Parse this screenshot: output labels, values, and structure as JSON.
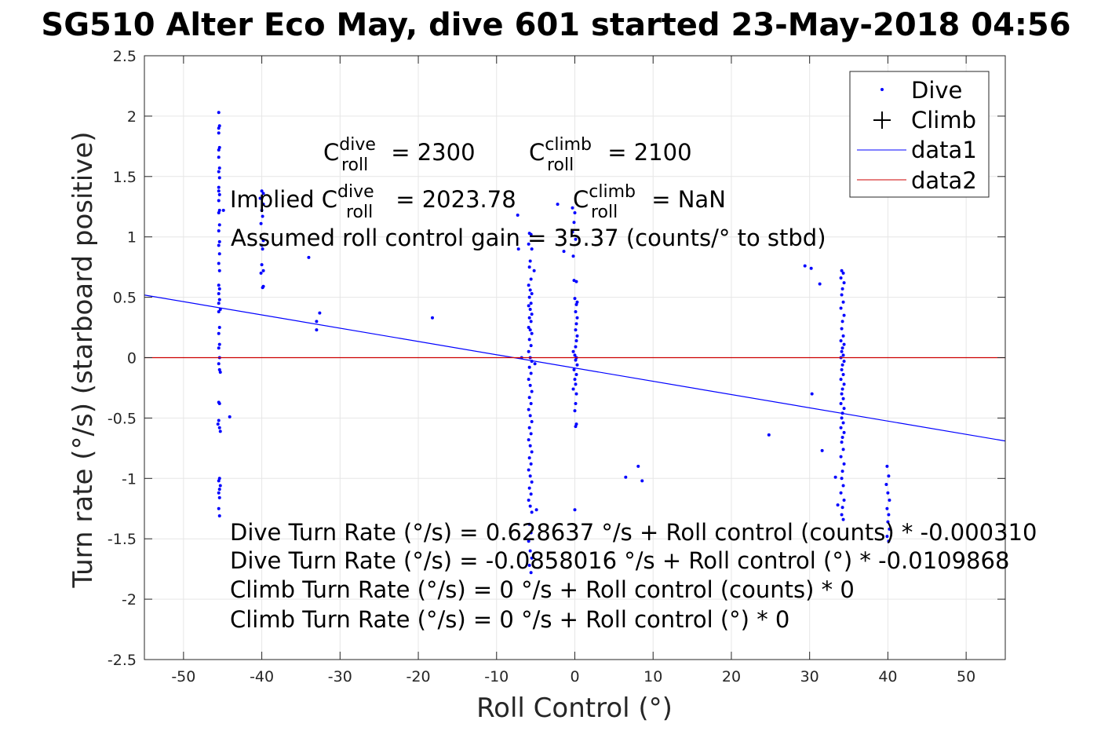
{
  "figure": {
    "title": "SG510 Alter Eco May, dive 601 started 23-May-2018 04:56"
  },
  "chart_data": {
    "type": "scatter",
    "title": "SG510 Alter Eco May, dive 601 started 23-May-2018 04:56",
    "xlabel": "Roll Control (°)",
    "ylabel": "Turn rate (°/s) (starboard positive)",
    "xlim": [
      -55,
      55
    ],
    "ylim": [
      -2.5,
      2.5
    ],
    "xticks": [
      -50,
      -40,
      -30,
      -20,
      -10,
      0,
      10,
      20,
      30,
      40,
      50
    ],
    "xtick_labels": [
      "-50",
      "-40",
      "-30",
      "-20",
      "-10",
      "0",
      "10",
      "20",
      "30",
      "40",
      "50"
    ],
    "yticks": [
      -2.5,
      -2,
      -1.5,
      -1,
      -0.5,
      0,
      0.5,
      1,
      1.5,
      2,
      2.5
    ],
    "ytick_labels": [
      "-2.5",
      "-2",
      "-1.5",
      "-1",
      "-0.5",
      "0",
      "0.5",
      "1",
      "1.5",
      "2",
      "2.5"
    ],
    "grid": true,
    "legend_position": "top-right",
    "legend": [
      "Dive",
      "Climb",
      "data1",
      "data2"
    ],
    "series": [
      {
        "name": "Dive",
        "kind": "scatter",
        "marker": "dot",
        "color": "#0000ff",
        "points": [
          [
            -45.5,
            2.03
          ],
          [
            -45.4,
            1.92
          ],
          [
            -45.5,
            1.9
          ],
          [
            -45.5,
            1.86
          ],
          [
            -45.4,
            1.74
          ],
          [
            -45.5,
            1.72
          ],
          [
            -45.5,
            1.66
          ],
          [
            -45.4,
            1.57
          ],
          [
            -45.5,
            1.54
          ],
          [
            -45.4,
            1.49
          ],
          [
            -45.5,
            1.41
          ],
          [
            -45.5,
            1.38
          ],
          [
            -45.4,
            1.35
          ],
          [
            -45.5,
            1.3
          ],
          [
            -45.4,
            1.22
          ],
          [
            -45.5,
            1.2
          ],
          [
            -45.4,
            1.1
          ],
          [
            -45.5,
            1.05
          ],
          [
            -45.4,
            0.96
          ],
          [
            -45.5,
            0.93
          ],
          [
            -45.4,
            0.86
          ],
          [
            -45.5,
            0.78
          ],
          [
            -45.4,
            0.72
          ],
          [
            -45.5,
            0.6
          ],
          [
            -45.4,
            0.57
          ],
          [
            -45.5,
            0.53
          ],
          [
            -45.4,
            0.48
          ],
          [
            -45.5,
            0.45
          ],
          [
            -45.3,
            0.4
          ],
          [
            -45.5,
            0.38
          ],
          [
            -45.4,
            0.25
          ],
          [
            -45.5,
            0.2
          ],
          [
            -45.4,
            0.11
          ],
          [
            -45.5,
            0.08
          ],
          [
            -45.4,
            0.0
          ],
          [
            -45.5,
            -0.05
          ],
          [
            -45.4,
            -0.1
          ],
          [
            -45.3,
            -0.12
          ],
          [
            -45.5,
            -0.37
          ],
          [
            -45.4,
            -0.38
          ],
          [
            -45.5,
            -0.52
          ],
          [
            -45.6,
            -0.55
          ],
          [
            -45.4,
            -0.58
          ],
          [
            -45.3,
            -0.61
          ],
          [
            -45.4,
            -1.0
          ],
          [
            -45.5,
            -1.02
          ],
          [
            -45.3,
            -1.06
          ],
          [
            -45.4,
            -1.09
          ],
          [
            -45.5,
            -1.12
          ],
          [
            -45.4,
            -1.16
          ],
          [
            -45.5,
            -1.25
          ],
          [
            -45.4,
            -1.31
          ],
          [
            -44.9,
            1.22
          ],
          [
            -44.1,
            -0.49
          ],
          [
            -40.0,
            1.38
          ],
          [
            -39.8,
            1.36
          ],
          [
            -40.2,
            1.32
          ],
          [
            -39.8,
            1.27
          ],
          [
            -40.0,
            1.22
          ],
          [
            -39.9,
            1.17
          ],
          [
            -40.1,
            1.11
          ],
          [
            -39.8,
            0.97
          ],
          [
            -40.0,
            0.93
          ],
          [
            -39.9,
            0.9
          ],
          [
            -40.0,
            0.77
          ],
          [
            -39.8,
            0.72
          ],
          [
            -40.1,
            0.7
          ],
          [
            -39.8,
            0.59
          ],
          [
            -39.9,
            0.58
          ],
          [
            -34.0,
            0.83
          ],
          [
            -32.6,
            0.37
          ],
          [
            -33.0,
            0.3
          ],
          [
            -33.0,
            0.23
          ],
          [
            -18.2,
            0.33
          ],
          [
            -7.3,
            1.18
          ],
          [
            -7.2,
            0.9
          ],
          [
            -6.8,
            0.0
          ],
          [
            -5.8,
            1.03
          ],
          [
            -5.6,
            1.02
          ],
          [
            -5.9,
            0.94
          ],
          [
            -5.5,
            0.9
          ],
          [
            -5.7,
            0.8
          ],
          [
            -5.8,
            0.75
          ],
          [
            -5.6,
            0.65
          ],
          [
            -5.9,
            0.6
          ],
          [
            -5.7,
            0.56
          ],
          [
            -5.5,
            0.53
          ],
          [
            -5.8,
            0.5
          ],
          [
            -5.6,
            0.45
          ],
          [
            -5.9,
            0.43
          ],
          [
            -5.7,
            0.4
          ],
          [
            -5.5,
            0.36
          ],
          [
            -5.8,
            0.33
          ],
          [
            -5.6,
            0.3
          ],
          [
            -5.9,
            0.25
          ],
          [
            -5.7,
            0.23
          ],
          [
            -5.5,
            0.2
          ],
          [
            -5.8,
            0.15
          ],
          [
            -5.6,
            0.1
          ],
          [
            -5.9,
            0.05
          ],
          [
            -5.7,
            0.0
          ],
          [
            -5.5,
            -0.03
          ],
          [
            -5.8,
            -0.08
          ],
          [
            -5.6,
            -0.13
          ],
          [
            -5.9,
            -0.18
          ],
          [
            -5.7,
            -0.23
          ],
          [
            -5.5,
            -0.28
          ],
          [
            -5.8,
            -0.33
          ],
          [
            -5.6,
            -0.38
          ],
          [
            -5.9,
            -0.43
          ],
          [
            -5.7,
            -0.48
          ],
          [
            -5.5,
            -0.53
          ],
          [
            -5.8,
            -0.58
          ],
          [
            -5.6,
            -0.63
          ],
          [
            -5.9,
            -0.68
          ],
          [
            -5.7,
            -0.73
          ],
          [
            -5.5,
            -0.78
          ],
          [
            -5.8,
            -0.83
          ],
          [
            -5.6,
            -0.88
          ],
          [
            -5.9,
            -0.93
          ],
          [
            -5.7,
            -0.98
          ],
          [
            -5.5,
            -1.03
          ],
          [
            -5.8,
            -1.08
          ],
          [
            -5.6,
            -1.13
          ],
          [
            -5.9,
            -1.18
          ],
          [
            -5.7,
            -1.23
          ],
          [
            -5.5,
            -1.28
          ],
          [
            -5.8,
            -1.38
          ],
          [
            -5.6,
            -1.45
          ],
          [
            -5.9,
            -1.52
          ],
          [
            -5.7,
            -1.6
          ],
          [
            -5.5,
            -1.66
          ],
          [
            -5.8,
            -1.72
          ],
          [
            -5.6,
            -1.78
          ],
          [
            -5.2,
            0.72
          ],
          [
            -5.1,
            -0.05
          ],
          [
            -4.9,
            -1.26
          ],
          [
            -2.2,
            1.27
          ],
          [
            -1.4,
            0.88
          ],
          [
            -0.3,
            1.24
          ],
          [
            0.0,
            1.2
          ],
          [
            -0.1,
            1.12
          ],
          [
            -0.3,
            1.04
          ],
          [
            0.1,
            0.98
          ],
          [
            -0.2,
            0.84
          ],
          [
            -0.1,
            0.64
          ],
          [
            0.2,
            0.63
          ],
          [
            0.0,
            0.49
          ],
          [
            0.3,
            0.46
          ],
          [
            0.2,
            0.44
          ],
          [
            0.1,
            0.38
          ],
          [
            0.3,
            0.33
          ],
          [
            0.2,
            0.28
          ],
          [
            0.1,
            0.23
          ],
          [
            0.3,
            0.18
          ],
          [
            0.2,
            0.14
          ],
          [
            0.1,
            0.09
          ],
          [
            -0.2,
            0.05
          ],
          [
            0.0,
            0.02
          ],
          [
            0.2,
            0.0
          ],
          [
            0.1,
            -0.02
          ],
          [
            0.3,
            -0.06
          ],
          [
            -0.1,
            -0.1
          ],
          [
            0.2,
            -0.14
          ],
          [
            0.0,
            -0.18
          ],
          [
            0.1,
            -0.22
          ],
          [
            -0.2,
            -0.26
          ],
          [
            0.2,
            -0.3
          ],
          [
            0.1,
            -0.38
          ],
          [
            0.0,
            -0.44
          ],
          [
            0.2,
            -0.55
          ],
          [
            0.1,
            -0.57
          ],
          [
            0.0,
            -1.26
          ],
          [
            6.5,
            -0.99
          ],
          [
            8.1,
            -0.9
          ],
          [
            8.6,
            -1.02
          ],
          [
            24.8,
            -0.64
          ],
          [
            29.4,
            0.76
          ],
          [
            30.2,
            0.74
          ],
          [
            31.3,
            0.61
          ],
          [
            30.3,
            -0.3
          ],
          [
            31.6,
            -0.77
          ],
          [
            33.3,
            -0.99
          ],
          [
            33.6,
            -1.22
          ],
          [
            34.1,
            0.72
          ],
          [
            34.3,
            0.7
          ],
          [
            34.0,
            0.66
          ],
          [
            34.4,
            0.62
          ],
          [
            34.2,
            0.57
          ],
          [
            34.1,
            0.52
          ],
          [
            34.3,
            0.46
          ],
          [
            34.0,
            0.41
          ],
          [
            34.4,
            0.35
          ],
          [
            34.2,
            0.3
          ],
          [
            34.1,
            0.24
          ],
          [
            34.3,
            0.18
          ],
          [
            34.0,
            0.14
          ],
          [
            34.4,
            0.11
          ],
          [
            34.2,
            0.08
          ],
          [
            34.1,
            0.05
          ],
          [
            34.3,
            0.02
          ],
          [
            34.0,
            0.0
          ],
          [
            34.4,
            -0.03
          ],
          [
            34.2,
            -0.06
          ],
          [
            34.1,
            -0.1
          ],
          [
            34.3,
            -0.14
          ],
          [
            34.0,
            -0.18
          ],
          [
            34.4,
            -0.22
          ],
          [
            34.2,
            -0.26
          ],
          [
            34.1,
            -0.3
          ],
          [
            34.3,
            -0.34
          ],
          [
            34.0,
            -0.38
          ],
          [
            34.4,
            -0.42
          ],
          [
            34.2,
            -0.46
          ],
          [
            34.1,
            -0.5
          ],
          [
            34.3,
            -0.54
          ],
          [
            34.0,
            -0.58
          ],
          [
            34.4,
            -0.62
          ],
          [
            34.2,
            -0.66
          ],
          [
            34.1,
            -0.7
          ],
          [
            34.3,
            -0.76
          ],
          [
            34.0,
            -0.82
          ],
          [
            34.4,
            -0.88
          ],
          [
            34.2,
            -0.94
          ],
          [
            34.1,
            -1.0
          ],
          [
            34.3,
            -1.06
          ],
          [
            34.0,
            -1.12
          ],
          [
            34.4,
            -1.18
          ],
          [
            34.2,
            -1.24
          ],
          [
            34.1,
            -1.3
          ],
          [
            34.3,
            -1.34
          ],
          [
            39.9,
            -0.9
          ],
          [
            40.1,
            -0.98
          ],
          [
            39.8,
            -1.05
          ],
          [
            40.0,
            -1.12
          ],
          [
            40.2,
            -1.18
          ],
          [
            39.9,
            -1.25
          ],
          [
            40.1,
            -1.3
          ],
          [
            40.0,
            -1.36
          ],
          [
            40.2,
            -1.42
          ],
          [
            39.9,
            -1.48
          ],
          [
            40.1,
            -1.52
          ]
        ]
      },
      {
        "name": "Climb",
        "kind": "scatter",
        "marker": "plus",
        "color": "#000000",
        "points": []
      },
      {
        "name": "data1",
        "kind": "line",
        "color": "#0000ff",
        "x": [
          -55,
          55
        ],
        "y": [
          0.518626,
          -0.690173
        ]
      },
      {
        "name": "data2",
        "kind": "line",
        "color": "#cc0000",
        "x": [
          -55,
          55
        ],
        "y": [
          0,
          0
        ]
      }
    ],
    "annotations": {
      "c_roll_dive": {
        "prefix": "C",
        "sup": "dive",
        "sub": "roll",
        "rest": " = 2300"
      },
      "c_roll_climb": {
        "prefix": "C",
        "sup": "climb",
        "sub": "roll",
        "rest": " = 2100"
      },
      "implied_dive": {
        "prefix": "Implied C",
        "sup": "dive",
        "sub": "roll",
        "rest": " = 2023.78"
      },
      "implied_climb": {
        "prefix": "C",
        "sup": "climb",
        "sub": "roll",
        "rest": " = NaN"
      },
      "gain": "Assumed roll control gain = 35.37 (counts/° to stbd)",
      "equations": [
        "Dive Turn Rate (°/s) = 0.628637 °/s + Roll control (counts) * -0.000310",
        "Dive Turn Rate (°/s) = -0.0858016 °/s + Roll control (°) * -0.0109868",
        "Climb Turn Rate (°/s) = 0 °/s + Roll control (counts) * 0",
        "Climb Turn Rate (°/s) = 0 °/s + Roll control (°) * 0"
      ]
    }
  }
}
